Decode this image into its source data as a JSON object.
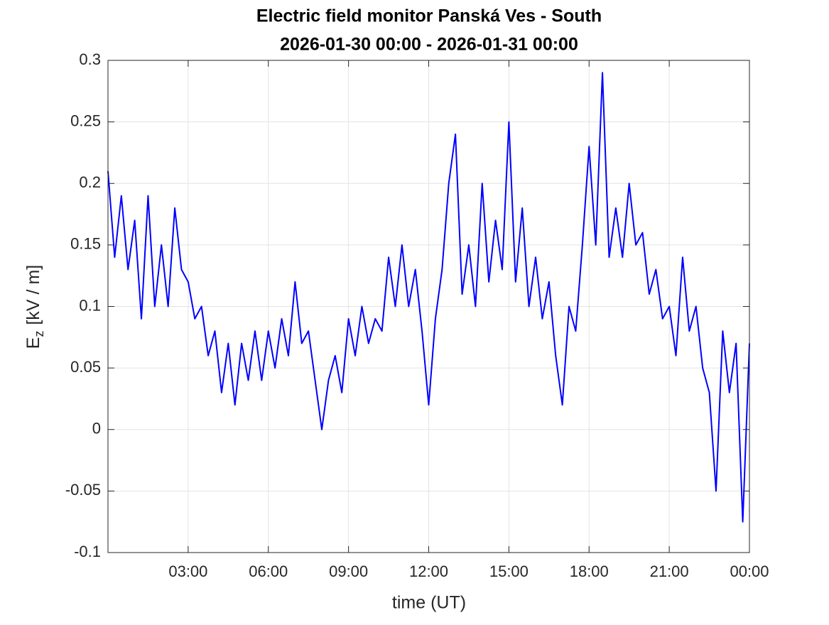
{
  "chart_data": {
    "type": "line",
    "title": [
      "Electric field monitor Panská Ves - South",
      "2026-01-30 00:00 - 2026-01-31 00:00"
    ],
    "xlabel": "time (UT)",
    "ylabel": {
      "main": "E",
      "sub": "z",
      "unit": "[kV / m]"
    },
    "xlim": [
      0,
      24
    ],
    "xticks": [
      {
        "value": 3,
        "label": "03:00"
      },
      {
        "value": 6,
        "label": "06:00"
      },
      {
        "value": 9,
        "label": "09:00"
      },
      {
        "value": 12,
        "label": "12:00"
      },
      {
        "value": 15,
        "label": "15:00"
      },
      {
        "value": 18,
        "label": "18:00"
      },
      {
        "value": 21,
        "label": "21:00"
      },
      {
        "value": 24,
        "label": "00:00"
      }
    ],
    "ylim": [
      -0.1,
      0.3
    ],
    "yticks": [
      -0.1,
      -0.05,
      0,
      0.05,
      0.1,
      0.15,
      0.2,
      0.25,
      0.3
    ],
    "grid": true,
    "x": [
      0,
      0.25,
      0.5,
      0.75,
      1,
      1.25,
      1.5,
      1.75,
      2,
      2.25,
      2.5,
      2.75,
      3,
      3.25,
      3.5,
      3.75,
      4,
      4.25,
      4.5,
      4.75,
      5,
      5.25,
      5.5,
      5.75,
      6,
      6.25,
      6.5,
      6.75,
      7,
      7.25,
      7.5,
      7.75,
      8,
      8.25,
      8.5,
      8.75,
      9,
      9.25,
      9.5,
      9.75,
      10,
      10.25,
      10.5,
      10.75,
      11,
      11.25,
      11.5,
      11.75,
      12,
      12.25,
      12.5,
      12.75,
      13,
      13.25,
      13.5,
      13.75,
      14,
      14.25,
      14.5,
      14.75,
      15,
      15.25,
      15.5,
      15.75,
      16,
      16.25,
      16.5,
      16.75,
      17,
      17.25,
      17.5,
      17.75,
      18,
      18.25,
      18.5,
      18.75,
      19,
      19.25,
      19.5,
      19.75,
      20,
      20.25,
      20.5,
      20.75,
      21,
      21.25,
      21.5,
      21.75,
      22,
      22.25,
      22.5,
      22.75,
      23,
      23.25,
      23.5,
      23.75,
      24
    ],
    "series": [
      {
        "color": "#0000ff",
        "values": [
          0.21,
          0.14,
          0.19,
          0.13,
          0.17,
          0.09,
          0.19,
          0.1,
          0.15,
          0.1,
          0.18,
          0.13,
          0.12,
          0.09,
          0.1,
          0.06,
          0.08,
          0.03,
          0.07,
          0.02,
          0.07,
          0.04,
          0.08,
          0.04,
          0.08,
          0.05,
          0.09,
          0.06,
          0.12,
          0.07,
          0.08,
          0.04,
          0.0,
          0.04,
          0.06,
          0.03,
          0.09,
          0.06,
          0.1,
          0.07,
          0.09,
          0.08,
          0.14,
          0.1,
          0.15,
          0.1,
          0.13,
          0.08,
          0.02,
          0.09,
          0.13,
          0.2,
          0.24,
          0.11,
          0.15,
          0.1,
          0.2,
          0.12,
          0.17,
          0.13,
          0.25,
          0.12,
          0.18,
          0.1,
          0.14,
          0.09,
          0.12,
          0.06,
          0.02,
          0.1,
          0.08,
          0.15,
          0.23,
          0.15,
          0.29,
          0.14,
          0.18,
          0.14,
          0.2,
          0.15,
          0.16,
          0.11,
          0.13,
          0.09,
          0.1,
          0.06,
          0.14,
          0.08,
          0.1,
          0.05,
          0.03,
          -0.05,
          0.08,
          0.03,
          0.07,
          -0.075,
          0.07
        ]
      }
    ]
  }
}
